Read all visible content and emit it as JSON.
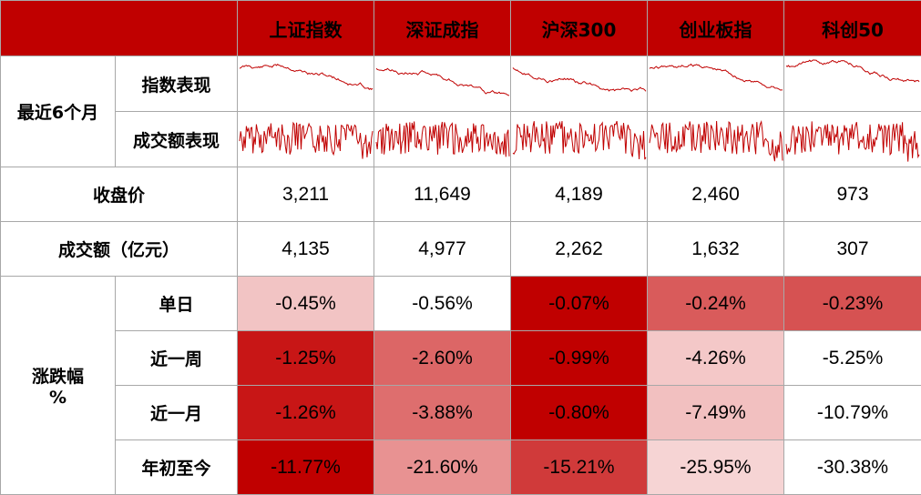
{
  "header": {
    "columns": [
      "上证指数",
      "深证成指",
      "沪深300",
      "创业板指",
      "科创50"
    ]
  },
  "section_recent": {
    "label": "最近6个月",
    "row_index": "指数表现",
    "row_volume": "成交额表现"
  },
  "close": {
    "label": "收盘价",
    "values": [
      "3,211",
      "11,649",
      "4,189",
      "2,460",
      "973"
    ]
  },
  "turnover": {
    "label": "成交额（亿元）",
    "values": [
      "4,135",
      "4,977",
      "2,262",
      "1,632",
      "307"
    ]
  },
  "change": {
    "label_line1": "涨跌幅",
    "label_line2": "%",
    "rows": [
      {
        "label": "单日",
        "values": [
          "-0.45%",
          "-0.56%",
          "-0.07%",
          "-0.24%",
          "-0.23%"
        ],
        "colors": [
          "#f2c4c4",
          "#ffffff",
          "#c00000",
          "#d95b5b",
          "#d65252"
        ]
      },
      {
        "label": "近一周",
        "values": [
          "-1.25%",
          "-2.60%",
          "-0.99%",
          "-4.26%",
          "-5.25%"
        ],
        "colors": [
          "#c81616",
          "#dc6666",
          "#c00000",
          "#f4c8c8",
          "#ffffff"
        ]
      },
      {
        "label": "近一月",
        "values": [
          "-1.26%",
          "-3.88%",
          "-0.80%",
          "-7.49%",
          "-10.79%"
        ],
        "colors": [
          "#c81616",
          "#de6e6e",
          "#c00000",
          "#f2c0c0",
          "#ffffff"
        ]
      },
      {
        "label": "年初至今",
        "values": [
          "-11.77%",
          "-21.60%",
          "-15.21%",
          "-25.95%",
          "-30.38%"
        ],
        "colors": [
          "#c00000",
          "#e89292",
          "#d03a3a",
          "#f6d4d4",
          "#ffffff"
        ]
      }
    ]
  },
  "colors": {
    "header_bg": "#c00000",
    "spark_line": "#c00000",
    "grid": "#a8a8a8"
  }
}
